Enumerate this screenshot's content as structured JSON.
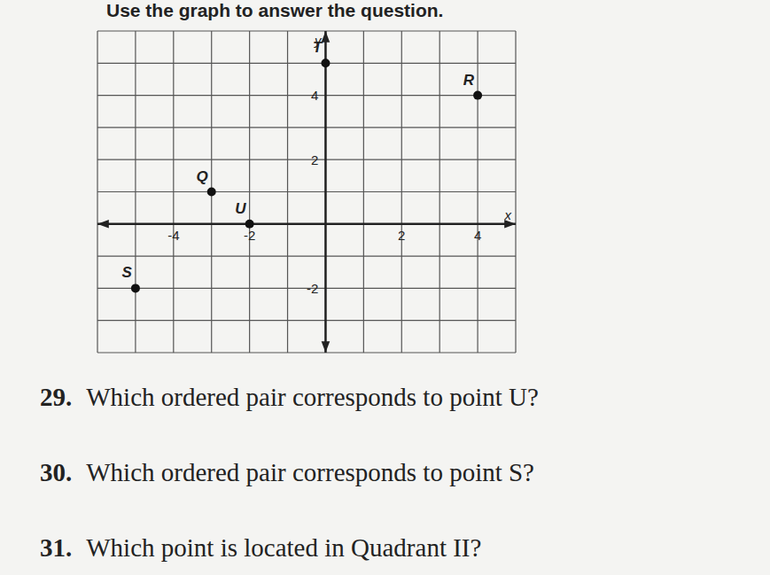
{
  "instruction": "Use the graph to answer the question.",
  "chart_data": {
    "type": "scatter",
    "x_label": "x",
    "y_label": "y",
    "points": [
      {
        "name": "T",
        "x": 0,
        "y": 5
      },
      {
        "name": "R",
        "x": 4,
        "y": 4
      },
      {
        "name": "Q",
        "x": -3,
        "y": 1
      },
      {
        "name": "U",
        "x": -2,
        "y": 0
      },
      {
        "name": "S",
        "x": -5,
        "y": -2
      }
    ],
    "color": "#111111",
    "marker": "circle",
    "xlim": [
      -6,
      5
    ],
    "ylim": [
      -4,
      6
    ],
    "xticks": [
      -4,
      -2,
      2,
      4
    ],
    "yticks": [
      -2,
      2,
      4
    ],
    "grid": true
  },
  "questions": [
    {
      "number": "29.",
      "text": "Which ordered pair corresponds to point U?"
    },
    {
      "number": "30.",
      "text": "Which ordered pair corresponds to point S?"
    },
    {
      "number": "31.",
      "text": "Which point is located in Quadrant II?"
    }
  ]
}
